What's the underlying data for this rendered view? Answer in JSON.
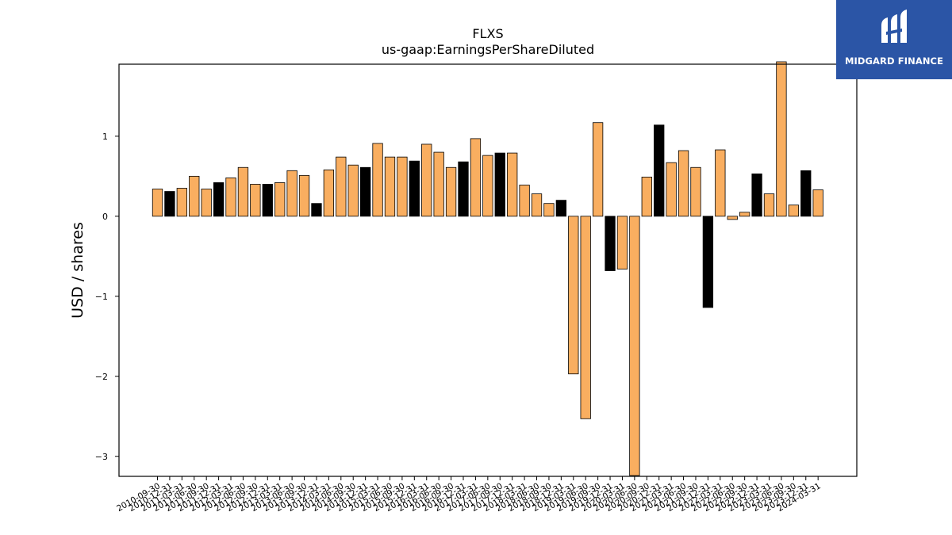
{
  "brand": {
    "name": "MIDGARD FINANCE",
    "logo_icon": "midgard-logo-icon",
    "background_color": "#2b55a6"
  },
  "colors": {
    "bar_primary": "#f9ae60",
    "bar_alt": "#000000",
    "bar_edge": "#000000"
  },
  "chart_data": {
    "type": "bar",
    "title": "FLXS",
    "subtitle": "us-gaap:EarningsPerShareDiluted",
    "xlabel": "",
    "ylabel": "USD / shares",
    "ylim": [
      -3.25,
      1.9
    ],
    "yticks": [
      1,
      0,
      -1,
      -2,
      -3
    ],
    "ytick_labels": [
      "1",
      "0",
      "−1",
      "−2",
      "−3"
    ],
    "grid": false,
    "legend": "none",
    "categories": [
      "2010-09-30",
      "2010-12-31",
      "2011-03-31",
      "2011-06-30",
      "2011-09-30",
      "2011-12-31",
      "2012-03-31",
      "2012-06-30",
      "2012-09-30",
      "2012-12-31",
      "2013-03-31",
      "2013-06-30",
      "2013-09-30",
      "2013-12-31",
      "2014-03-31",
      "2014-06-30",
      "2014-09-30",
      "2014-12-31",
      "2015-03-31",
      "2015-06-30",
      "2015-09-30",
      "2015-12-31",
      "2016-03-31",
      "2016-06-30",
      "2016-09-30",
      "2016-12-31",
      "2017-03-31",
      "2017-06-30",
      "2017-09-30",
      "2017-12-31",
      "2018-03-31",
      "2018-06-30",
      "2018-09-30",
      "2018-12-31",
      "2019-03-31",
      "2019-06-30",
      "2019-09-30",
      "2019-12-31",
      "2020-03-31",
      "2020-06-30",
      "2020-09-30",
      "2020-12-31",
      "2021-03-31",
      "2021-06-30",
      "2021-09-30",
      "2021-12-31",
      "2022-03-31",
      "2022-06-30",
      "2022-09-30",
      "2022-12-31",
      "2023-03-31",
      "2023-06-30",
      "2023-09-30",
      "2023-12-31",
      "2024-03-31"
    ],
    "values": [
      0.34,
      0.31,
      0.35,
      0.5,
      0.34,
      0.42,
      0.48,
      0.61,
      0.4,
      0.4,
      0.42,
      0.57,
      0.51,
      0.16,
      0.58,
      0.74,
      0.64,
      0.61,
      0.91,
      0.74,
      0.74,
      0.69,
      0.9,
      0.8,
      0.61,
      0.68,
      0.97,
      0.76,
      0.79,
      0.79,
      0.39,
      0.28,
      0.16,
      0.2,
      -1.97,
      -2.53,
      1.17,
      -0.68,
      -0.66,
      -3.24,
      0.49,
      1.14,
      0.67,
      0.82,
      0.61,
      -1.14,
      0.83,
      -0.04,
      0.05,
      0.53,
      0.28,
      1.93,
      0.14,
      0.57,
      0.33
    ],
    "highlight": [
      0,
      1,
      0,
      0,
      0,
      1,
      0,
      0,
      0,
      1,
      0,
      0,
      0,
      1,
      0,
      0,
      0,
      1,
      0,
      0,
      0,
      1,
      0,
      0,
      0,
      1,
      0,
      0,
      1,
      0,
      0,
      0,
      0,
      1,
      0,
      0,
      0,
      1,
      0,
      0,
      0,
      1,
      0,
      0,
      0,
      1,
      0,
      0,
      0,
      1,
      0,
      0,
      0,
      1,
      0
    ]
  }
}
